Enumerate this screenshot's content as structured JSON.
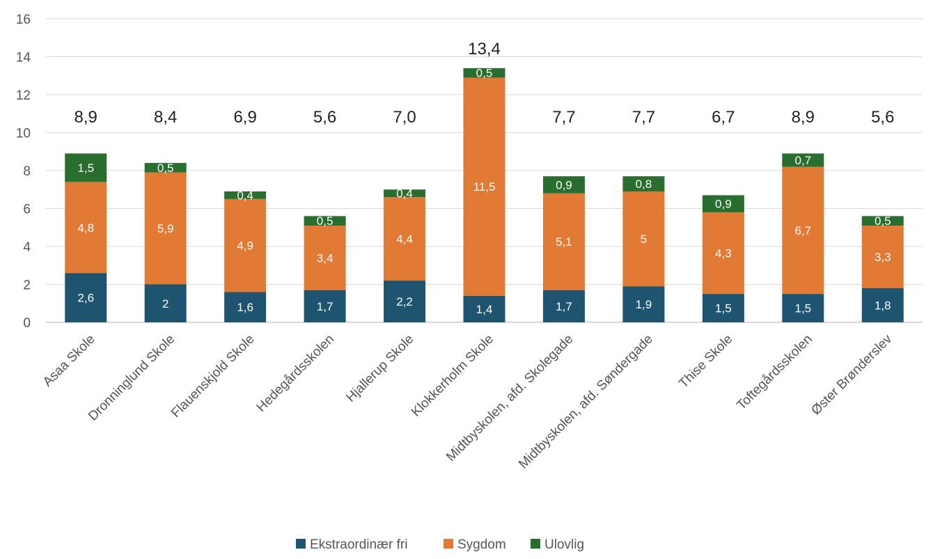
{
  "chart_data": {
    "type": "bar",
    "stacked": true,
    "categories": [
      "Asaa Skole",
      "Dronninglund Skole",
      "Flauenskjold Skole",
      "Hedegårdsskolen",
      "Hjallerup Skole",
      "Klokkerholm Skole",
      "Midtbyskolen, afd. Skolegade",
      "Midtbyskolen, afd. Søndergade",
      "Thise Skole",
      "Toftegårdsskolen",
      "Øster Brønderslev"
    ],
    "series": [
      {
        "name": "Ekstraordinær fri",
        "color": "#1f5470",
        "values": [
          2.6,
          2,
          1.6,
          1.7,
          2.2,
          1.4,
          1.7,
          1.9,
          1.5,
          1.5,
          1.8
        ],
        "labels": [
          "2,6",
          "2",
          "1,6",
          "1,7",
          "2,2",
          "1,4",
          "1,7",
          "1,9",
          "1,5",
          "1,5",
          "1,8"
        ]
      },
      {
        "name": "Sygdom",
        "color": "#e07a35",
        "values": [
          4.8,
          5.9,
          4.9,
          3.4,
          4.4,
          11.5,
          5.1,
          5,
          4.3,
          6.7,
          3.3
        ],
        "labels": [
          "4,8",
          "5,9",
          "4,9",
          "3,4",
          "4,4",
          "11,5",
          "5,1",
          "5",
          "4,3",
          "6,7",
          "3,3"
        ]
      },
      {
        "name": "Ulovlig",
        "color": "#2a6e2f",
        "values": [
          1.5,
          0.5,
          0.4,
          0.5,
          0.4,
          0.5,
          0.9,
          0.8,
          0.9,
          0.7,
          0.5
        ],
        "labels": [
          "1,5",
          "0,5",
          "0,4",
          "0,5",
          "0,4",
          "0,5",
          "0,9",
          "0,8",
          "0,9",
          "0,7",
          "0,5"
        ]
      }
    ],
    "totals": [
      8.9,
      8.4,
      6.9,
      5.6,
      7.0,
      13.4,
      7.7,
      7.7,
      6.7,
      8.9,
      5.6
    ],
    "total_labels": [
      "8,9",
      "8,4",
      "6,9",
      "5,6",
      "7,0",
      "13,4",
      "7,7",
      "7,7",
      "6,7",
      "8,9",
      "5,6"
    ],
    "yticks": [
      0,
      2,
      4,
      6,
      8,
      10,
      12,
      14,
      16
    ],
    "ylim": [
      0,
      16
    ],
    "grid": true,
    "legend": "bottom",
    "title": "",
    "xlabel": "",
    "ylabel": ""
  }
}
